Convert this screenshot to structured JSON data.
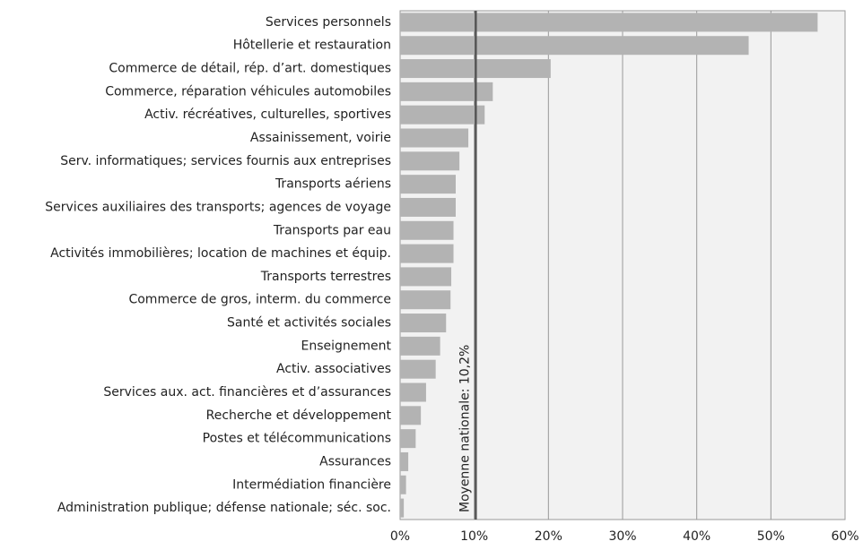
{
  "chart_data": {
    "type": "hbar",
    "categories": [
      "Services personnels",
      "Hôtellerie et restauration",
      "Commerce de détail, rép. d’art. domestiques",
      "Commerce, réparation véhicules automobiles",
      "Activ. récréatives, culturelles, sportives",
      "Assainissement, voirie",
      "Serv. informatiques; services fournis aux entreprises",
      "Transports aériens",
      "Services auxiliaires des transports; agences de voyage",
      "Transports par eau",
      "Activités immobilières; location de machines et équip.",
      "Transports terrestres",
      "Commerce de gros, interm. du commerce",
      "Santé et activités sociales",
      "Enseignement",
      "Activ. associatives",
      "Services aux. act. financières et d’assurances",
      "Recherche et développement",
      "Postes et télécommunications",
      "Assurances",
      "Intermédiation financière",
      "Administration publique; défense nationale;  séc. soc."
    ],
    "values": [
      56.3,
      47.0,
      20.3,
      12.5,
      11.4,
      9.2,
      8.0,
      7.5,
      7.5,
      7.2,
      7.2,
      6.9,
      6.8,
      6.2,
      5.4,
      4.8,
      3.5,
      2.8,
      2.1,
      1.1,
      0.8,
      0.5
    ],
    "color": "#b3b3b3",
    "xlim": [
      0,
      60
    ],
    "xticks": [
      {
        "value": 0,
        "label": "0%"
      },
      {
        "value": 10,
        "label": "10%"
      },
      {
        "value": 20,
        "label": "20%"
      },
      {
        "value": 30,
        "label": "30%"
      },
      {
        "value": 40,
        "label": "40%"
      },
      {
        "value": 50,
        "label": "50%"
      },
      {
        "value": 60,
        "label": "60%"
      }
    ],
    "grid": true,
    "reference_line": {
      "value": 10.2,
      "label": "Moyenne nationale: 10,2%",
      "color": "#555555"
    }
  }
}
